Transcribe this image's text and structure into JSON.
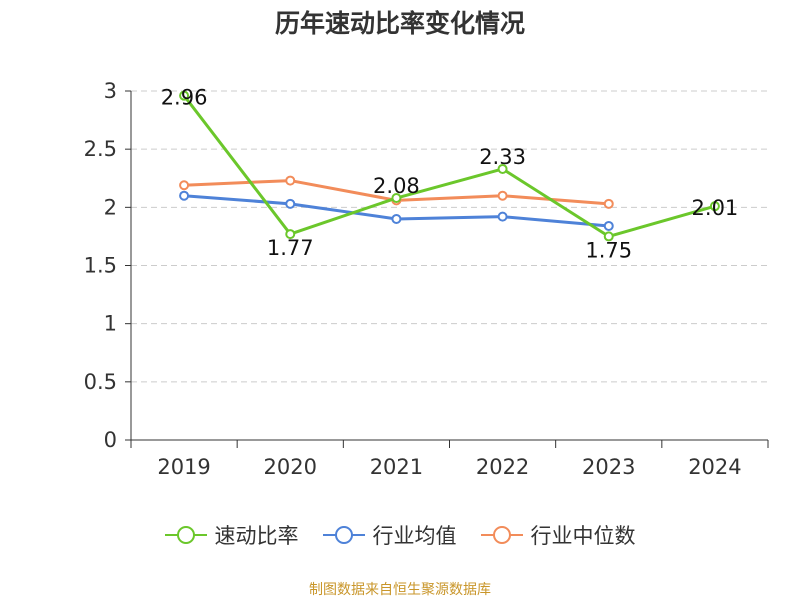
{
  "chart_data": {
    "type": "line",
    "title": "历年速动比率变化情况",
    "categories": [
      "2019",
      "2020",
      "2021",
      "2022",
      "2023",
      "2024"
    ],
    "ylim": [
      0,
      3
    ],
    "yticks": [
      "0",
      "0.5",
      "1",
      "1.5",
      "2",
      "2.5",
      "3"
    ],
    "grid": true,
    "legend_position": "bottom",
    "series": [
      {
        "name": "速动比率",
        "color": "#6bc72b",
        "values": [
          2.96,
          1.77,
          2.08,
          2.33,
          1.75,
          2.01
        ],
        "data_labels": [
          "2.96",
          "1.77",
          "2.08",
          "2.33",
          "1.75",
          "2.01"
        ]
      },
      {
        "name": "行业均值",
        "color": "#4e82d8",
        "values": [
          2.1,
          2.03,
          1.9,
          1.92,
          1.84,
          null
        ]
      },
      {
        "name": "行业中位数",
        "color": "#f28c5a",
        "values": [
          2.19,
          2.23,
          2.06,
          2.1,
          2.03,
          null
        ]
      }
    ]
  },
  "footer": {
    "source": "制图数据来自恒生聚源数据库"
  }
}
